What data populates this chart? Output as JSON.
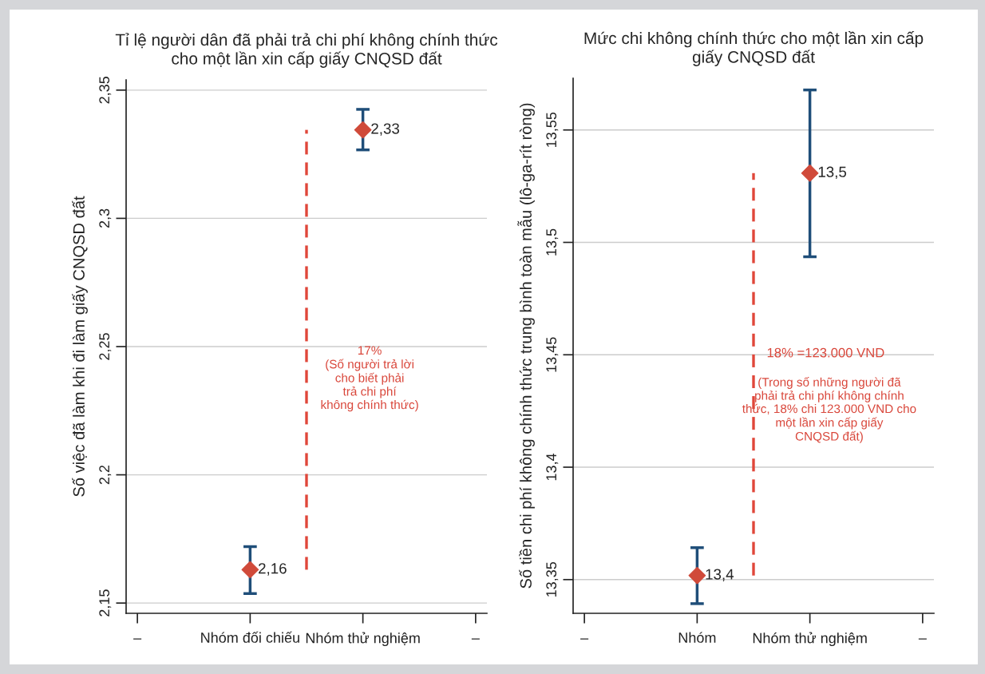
{
  "chart_data": [
    {
      "type": "scatter",
      "title": "Tỉ lệ người dân đã phải trả chi phí không chính thức\ncho một lần xin cấp giấy CNQSD đất",
      "ylabel": "Số việc đã làm khi đi làm giấy CNQSD đất",
      "categories": [
        "–",
        "Nhóm đối chiếu",
        "Nhóm thử nghiệm",
        "–"
      ],
      "ylim": [
        2.146,
        2.354
      ],
      "yticks": [
        {
          "value": 2.15,
          "label": "2,15"
        },
        {
          "value": 2.2,
          "label": "2,2"
        },
        {
          "value": 2.25,
          "label": "2,25"
        },
        {
          "value": 2.3,
          "label": "2,3"
        },
        {
          "value": 2.35,
          "label": "2,35"
        }
      ],
      "grid": "y",
      "marker": "diamond",
      "series": [
        {
          "color": "#d04a3a",
          "values": [
            null,
            2.163,
            2.3345,
            null
          ],
          "errors": [
            null,
            [
              2.1537,
              2.172
            ],
            [
              2.3267,
              2.3425
            ],
            null
          ],
          "value_labels": [
            null,
            "2,16",
            "2,33",
            null
          ]
        }
      ],
      "annotations": [
        "17%\n(Số người trả lời\ncho biết phải\ntrả chi phí\nkhông chính thức)"
      ]
    },
    {
      "type": "scatter",
      "title": "Mức chi không chính thức cho một lần xin cấp\ngiấy CNQSD đất",
      "ylabel": "Số tiền chi phí không chính thức trung bình toàn mẫu (lô-ga-rít ròng)",
      "categories": [
        "–",
        "Nhóm",
        "Nhóm thử nghiệm",
        "–"
      ],
      "ylim": [
        13.335,
        13.573
      ],
      "yticks": [
        {
          "value": 13.35,
          "label": "13,35"
        },
        {
          "value": 13.4,
          "label": "13,4"
        },
        {
          "value": 13.45,
          "label": "13,45"
        },
        {
          "value": 13.5,
          "label": "13,5"
        },
        {
          "value": 13.55,
          "label": "13,55"
        }
      ],
      "grid": "y",
      "marker": "diamond",
      "series": [
        {
          "color": "#d04a3a",
          "values": [
            null,
            13.3518,
            13.5308,
            null
          ],
          "errors": [
            null,
            [
              13.3393,
              13.3642
            ],
            [
              13.4936,
              13.5678
            ],
            null
          ],
          "value_labels": [
            null,
            "13,4",
            "13,5",
            null
          ]
        }
      ],
      "annotations": [
        "18% =123.000 VND",
        "(Trong số những người đã\nphải trả chi phí không chính\nthức, 18% chi 123.000 VND cho\nmột lần xin cấp giấy\nCNQSD đất)"
      ]
    }
  ]
}
